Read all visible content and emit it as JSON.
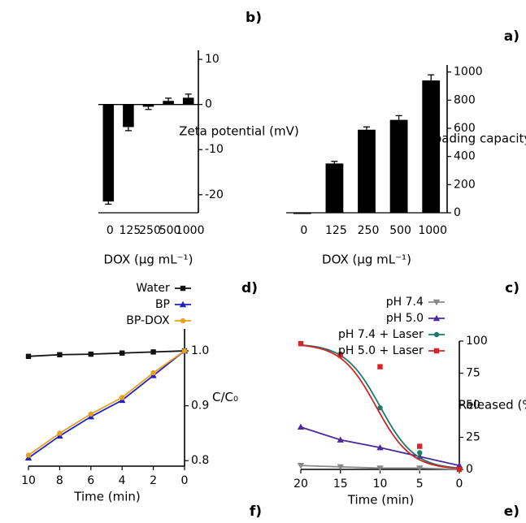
{
  "chart_data": [
    {
      "panel_label": "a)",
      "type": "bar",
      "categories": [
        "1000",
        "500",
        "250",
        "125",
        "0"
      ],
      "values": [
        940,
        660,
        590,
        350,
        0
      ],
      "errors": [
        40,
        30,
        20,
        15,
        0
      ],
      "xlabel": "DOX (µg mL⁻¹)",
      "ylabel": "Loading capacity (%)",
      "ylim": [
        0,
        1050
      ],
      "yticks": [
        "0",
        "200",
        "400",
        "600",
        "800",
        "1000"
      ],
      "color": "#000000"
    },
    {
      "panel_label": "b)",
      "type": "bar",
      "categories": [
        "1000",
        "500",
        "250",
        "125",
        "0"
      ],
      "values": [
        1.5,
        0.8,
        -0.5,
        -5,
        -21.5
      ],
      "errors": [
        0.8,
        0.6,
        0.6,
        0.8,
        0.6
      ],
      "xlabel": "DOX (µg mL⁻¹)",
      "ylabel": "Zeta potential (mV)",
      "ylim": [
        -24,
        12
      ],
      "yticks": [
        "-20",
        "-10",
        "0",
        "10"
      ],
      "color": "#000000"
    },
    {
      "panel_label": "c)",
      "type": "line",
      "x": [
        0,
        5,
        10,
        15,
        20
      ],
      "xlabel": "Time (min)",
      "ylabel": "Released (%)",
      "xlim": [
        0,
        20
      ],
      "ylim": [
        0,
        100
      ],
      "xticks": [
        "0",
        "5",
        "10",
        "15",
        "20"
      ],
      "yticks": [
        "0",
        "25",
        "50",
        "75",
        "100"
      ],
      "series": [
        {
          "name": "pH 7.4",
          "values": [
            0,
            1,
            1,
            2,
            3
          ],
          "color": "#888888",
          "marker": "triangle-down"
        },
        {
          "name": "pH 5.0",
          "values": [
            3,
            10,
            17,
            23,
            33
          ],
          "color": "#4b2a9c",
          "marker": "triangle"
        },
        {
          "name": "pH 7.4 + Laser",
          "values": [
            0,
            13,
            48,
            90,
            98
          ],
          "color": "#1a7a6e",
          "marker": "circle"
        },
        {
          "name": "pH 5.0 + Laser",
          "values": [
            0,
            18,
            80,
            89,
            98
          ],
          "color": "#d42424",
          "marker": "square"
        }
      ]
    },
    {
      "panel_label": "d)",
      "type": "line",
      "x": [
        0,
        2,
        4,
        6,
        8,
        10
      ],
      "xlabel": "Time (min)",
      "ylabel": "C/C₀",
      "xlim": [
        0,
        10
      ],
      "ylim": [
        0.79,
        1.04
      ],
      "xticks": [
        "0",
        "2",
        "4",
        "6",
        "8",
        "10"
      ],
      "yticks": [
        "0.8",
        "0.9",
        "1.0"
      ],
      "series": [
        {
          "name": "Water",
          "values": [
            1.0,
            0.998,
            0.996,
            0.994,
            0.993,
            0.99
          ],
          "color": "#111111",
          "marker": "square"
        },
        {
          "name": "BP",
          "values": [
            1.0,
            0.955,
            0.91,
            0.88,
            0.845,
            0.805
          ],
          "color": "#2020c0",
          "marker": "triangle"
        },
        {
          "name": "BP-DOX",
          "values": [
            1.0,
            0.96,
            0.915,
            0.885,
            0.85,
            0.81
          ],
          "color": "#e8a020",
          "marker": "circle"
        }
      ]
    }
  ],
  "bottom_labels": {
    "left": "e)",
    "right": "f)"
  }
}
